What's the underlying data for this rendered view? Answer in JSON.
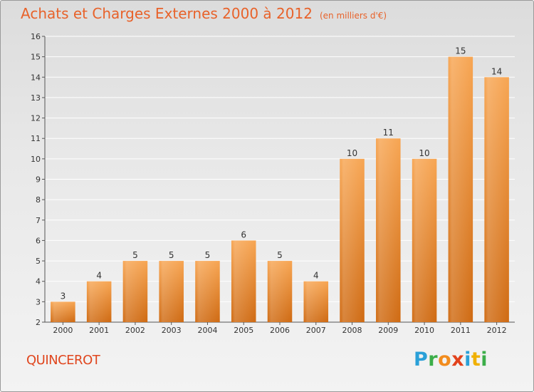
{
  "header": {
    "title": "Achats et Charges Externes 2000 à 2012",
    "subtitle": "(en milliers d'€)"
  },
  "footer": {
    "commune": "QUINCEROT",
    "logo_letters": [
      "P",
      "r",
      "o",
      "x",
      "i",
      "t",
      "i"
    ]
  },
  "colors": {
    "bar_top": "#f7a552",
    "bar_bottom": "#cf6a12",
    "title": "#e8622a",
    "grid": "#ffffff",
    "axis_text": "#333333"
  },
  "chart_data": {
    "type": "bar",
    "title": "Achats et Charges Externes 2000 à 2012",
    "subtitle": "(en milliers d'€)",
    "xlabel": "",
    "ylabel": "",
    "categories": [
      "2000",
      "2001",
      "2002",
      "2003",
      "2004",
      "2005",
      "2006",
      "2007",
      "2008",
      "2009",
      "2010",
      "2011",
      "2012"
    ],
    "values": [
      3,
      4,
      5,
      5,
      5,
      6,
      5,
      4,
      10,
      11,
      10,
      15,
      14
    ],
    "data_labels": [
      "3",
      "4",
      "5",
      "5",
      "5",
      "6",
      "5",
      "4",
      "10",
      "11",
      "10",
      "15",
      "14"
    ],
    "ylim": [
      2,
      16
    ],
    "yticks": [
      2,
      3,
      4,
      5,
      6,
      7,
      8,
      9,
      10,
      11,
      12,
      13,
      14,
      15,
      16
    ],
    "ytick_labels": [
      "2",
      "3",
      "4",
      "5",
      "6",
      "7",
      "8",
      "9",
      "10",
      "11",
      "12",
      "13",
      "14",
      "15",
      "16"
    ],
    "grid": true,
    "legend": "none"
  }
}
